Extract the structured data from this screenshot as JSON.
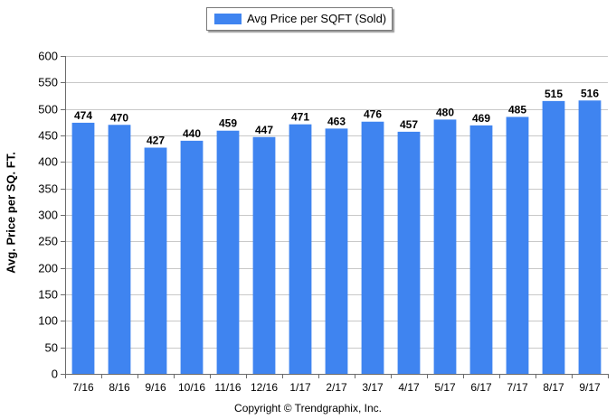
{
  "chart_data": {
    "type": "bar",
    "categories": [
      "7/16",
      "8/16",
      "9/16",
      "10/16",
      "11/16",
      "12/16",
      "1/17",
      "2/17",
      "3/17",
      "4/17",
      "5/17",
      "6/17",
      "7/17",
      "8/17",
      "9/17"
    ],
    "series": [
      {
        "name": "Avg Price per SQFT (Sold)",
        "values": [
          474,
          470,
          427,
          440,
          459,
          447,
          471,
          463,
          476,
          457,
          480,
          469,
          485,
          515,
          516
        ],
        "color": "#3f84f0"
      }
    ],
    "xlabel": "",
    "ylabel": "Avg. Price per SQ. FT.",
    "ylim": [
      0,
      600
    ],
    "yticks": [
      0,
      50,
      100,
      150,
      200,
      250,
      300,
      350,
      400,
      450,
      500,
      550,
      600
    ],
    "grid": true,
    "legend_position": "top-center"
  },
  "copyright": "Copyright © Trendgraphix, Inc."
}
